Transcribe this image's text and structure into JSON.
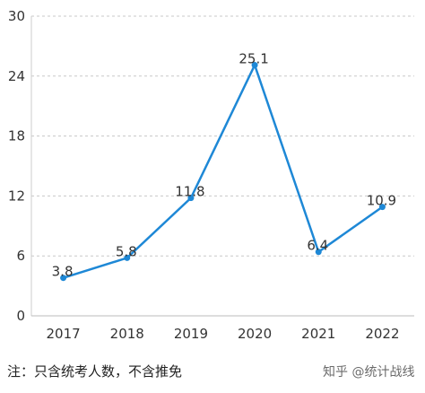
{
  "chart_data": {
    "type": "line",
    "categories": [
      "2017",
      "2018",
      "2019",
      "2020",
      "2021",
      "2022"
    ],
    "series": [
      {
        "values": [
          3.8,
          5.8,
          11.8,
          25.1,
          6.4,
          10.9
        ],
        "labels": [
          "3.8",
          "5.8",
          "11.8",
          "25.1",
          "6.4",
          "10.9"
        ]
      }
    ],
    "yticks": [
      "0",
      "6",
      "12",
      "18",
      "24",
      "30"
    ],
    "ylim": [
      0,
      30
    ],
    "grid": true,
    "legend": "none",
    "line_color": "#1e88d6"
  },
  "footnote": "注：只含统考人数，不含推免",
  "watermark": "知乎 @统计战线"
}
